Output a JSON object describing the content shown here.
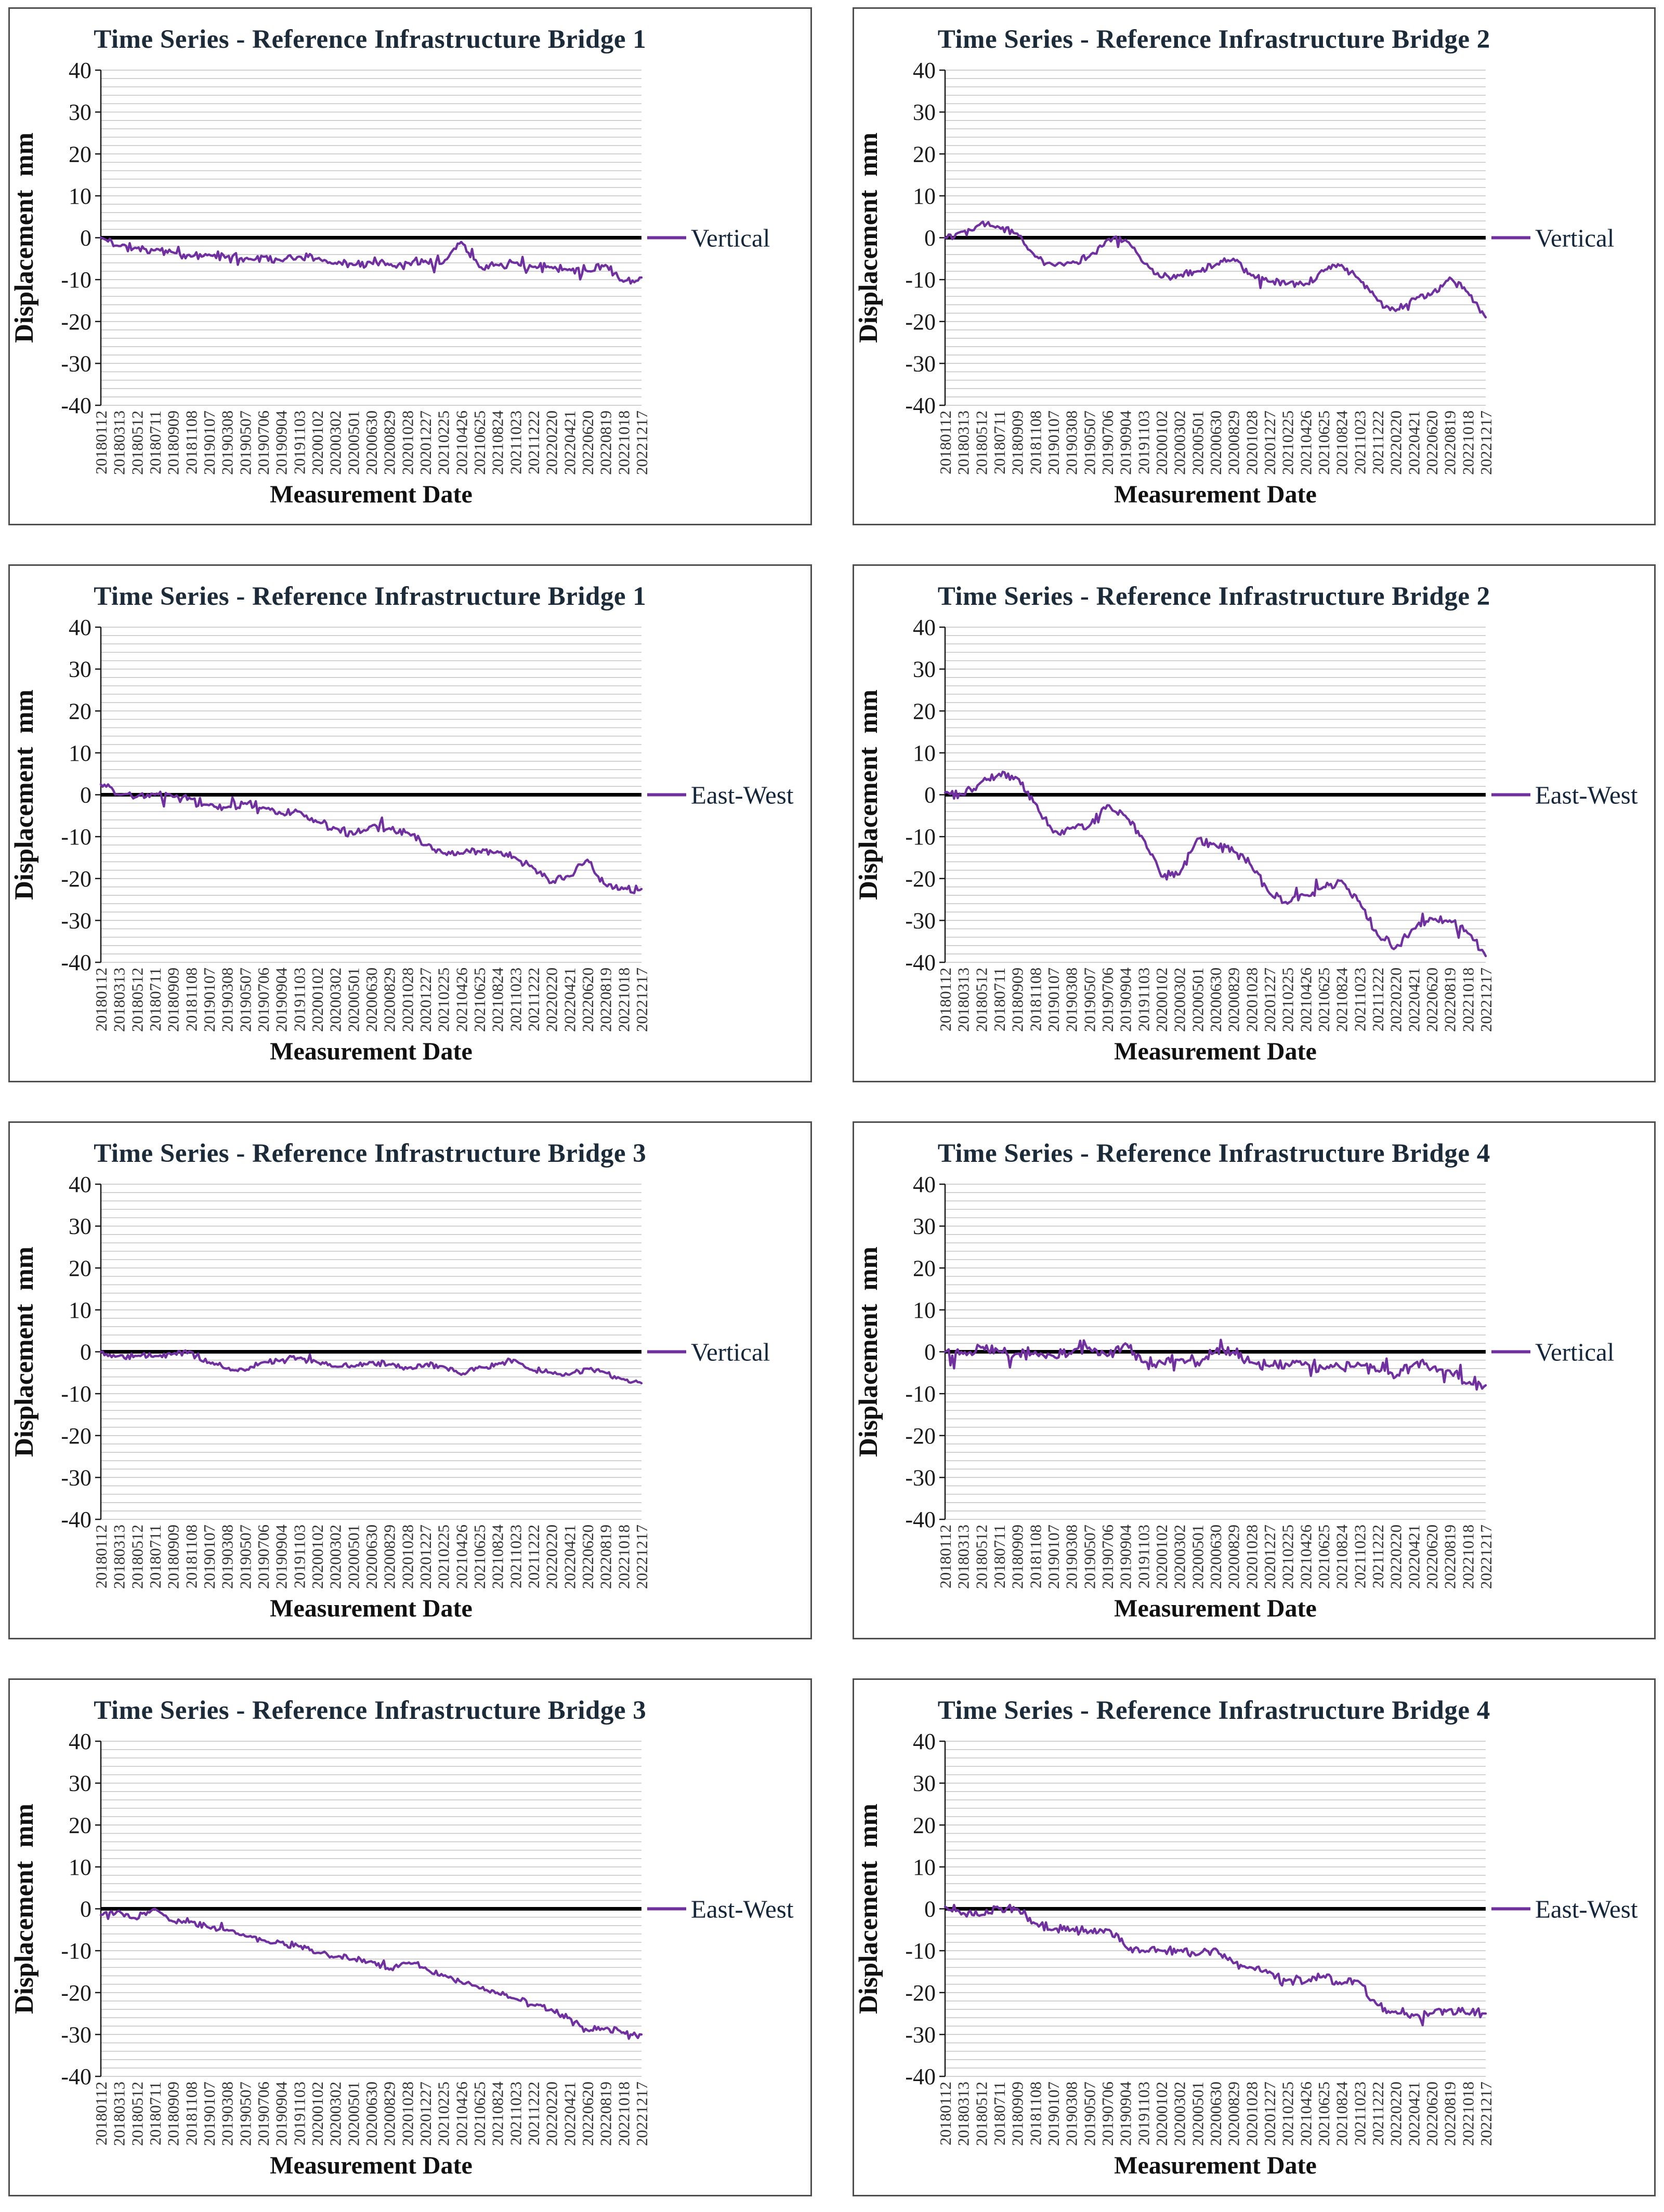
{
  "shared": {
    "ylabel": "Displacement  mm",
    "xlabel": "Measurement Date",
    "ylim": [
      -40,
      40
    ],
    "y_tick_step": 10,
    "grid_step": 2,
    "grid_on": true,
    "legend_position": "right-at-zero",
    "line_color": "#7030A0",
    "zero_line_color": "#000000",
    "gridline_color": "#c3c3c3",
    "axis_color": "#1a1a1a",
    "x_labels": [
      "20180112",
      "20180313",
      "20180512",
      "20180711",
      "20180909",
      "20181108",
      "20190107",
      "20190308",
      "20190507",
      "20190706",
      "20190904",
      "20191103",
      "20200102",
      "20200302",
      "20200501",
      "20200630",
      "20200829",
      "20201028",
      "20201227",
      "20210225",
      "20210426",
      "20210625",
      "20210824",
      "20211023",
      "20211222",
      "20220220",
      "20220421",
      "20220620",
      "20220819",
      "20221018",
      "20221217"
    ]
  },
  "chart_data": [
    {
      "type": "line",
      "title": "Time Series - Reference Infrastructure Bridge 1",
      "legend": "Vertical",
      "noise_amplitude": 1.1,
      "seed": 11,
      "series": [
        {
          "name": "Vertical",
          "values": [
            0,
            -2,
            -2.5,
            -3,
            -3.5,
            -4.5,
            -4,
            -4.5,
            -5,
            -4.5,
            -5.5,
            -4.5,
            -5,
            -6,
            -6.5,
            -6,
            -6.5,
            -6,
            -5.5,
            -6,
            -1,
            -7,
            -6.5,
            -6,
            -7,
            -7,
            -7.5,
            -8,
            -6.5,
            -10.5,
            -9.5
          ]
        }
      ]
    },
    {
      "type": "line",
      "title": "Time Series - Reference Infrastructure Bridge 2",
      "legend": "Vertical",
      "noise_amplitude": 1.0,
      "seed": 22,
      "series": [
        {
          "name": "Vertical",
          "values": [
            0,
            1.5,
            3.5,
            2.5,
            1,
            -4.5,
            -6.5,
            -6,
            -4.5,
            -0.5,
            -0.5,
            -6,
            -9.5,
            -9,
            -8,
            -6.5,
            -5,
            -9,
            -10.5,
            -11,
            -11,
            -8,
            -6.5,
            -10,
            -15,
            -17.5,
            -14.5,
            -13.5,
            -9.5,
            -13,
            -19
          ]
        }
      ]
    },
    {
      "type": "line",
      "title": "Time Series - Reference Infrastructure Bridge 1",
      "legend": "East-West",
      "noise_amplitude": 1.1,
      "seed": 33,
      "series": [
        {
          "name": "East-West",
          "values": [
            2.5,
            0,
            -0.5,
            0,
            -0.5,
            -1,
            -2.5,
            -3,
            -2,
            -3,
            -4.5,
            -4,
            -6.5,
            -8,
            -9.5,
            -7.5,
            -8,
            -9,
            -12,
            -14,
            -14,
            -13.5,
            -13.5,
            -15,
            -17.5,
            -21,
            -19.5,
            -15.5,
            -21.5,
            -22.5,
            -22.5
          ]
        }
      ]
    },
    {
      "type": "line",
      "title": "Time Series - Reference Infrastructure Bridge 2",
      "legend": "East-West",
      "noise_amplitude": 1.2,
      "seed": 44,
      "series": [
        {
          "name": "East-West",
          "values": [
            0.5,
            0,
            3,
            5,
            4,
            -2,
            -9,
            -8,
            -7.5,
            -2.5,
            -5,
            -10.5,
            -19.5,
            -19,
            -10.5,
            -12,
            -13.5,
            -17,
            -23.5,
            -26,
            -24,
            -22,
            -20.5,
            -25.5,
            -33.5,
            -36.5,
            -32,
            -29.5,
            -30,
            -33,
            -38.5
          ]
        }
      ]
    },
    {
      "type": "line",
      "title": "Time Series - Reference Infrastructure Bridge 3",
      "legend": "Vertical",
      "noise_amplitude": 0.8,
      "seed": 55,
      "series": [
        {
          "name": "Vertical",
          "values": [
            0,
            -1,
            -1,
            -1,
            -0.5,
            0,
            -2.5,
            -4,
            -4.5,
            -2.5,
            -2,
            -1.5,
            -2.5,
            -3.5,
            -3.5,
            -2.5,
            -3,
            -4,
            -3,
            -3.5,
            -5.5,
            -3.5,
            -3,
            -2,
            -4.5,
            -5,
            -5.5,
            -4,
            -5,
            -6.5,
            -7.5
          ]
        }
      ]
    },
    {
      "type": "line",
      "title": "Time Series - Reference Infrastructure Bridge 4",
      "legend": "Vertical",
      "noise_amplitude": 1.6,
      "seed": 66,
      "series": [
        {
          "name": "Vertical",
          "values": [
            0,
            -0.5,
            1,
            0,
            -0.5,
            0,
            -1,
            -0.5,
            1,
            -1,
            2,
            -2.5,
            -2.5,
            -2,
            -2.5,
            0,
            0,
            -2.5,
            -3.5,
            -3,
            -2.5,
            -4,
            -4,
            -3,
            -4.5,
            -6,
            -3,
            -4,
            -4.5,
            -7.5,
            -8
          ]
        }
      ]
    },
    {
      "type": "line",
      "title": "Time Series - Reference Infrastructure Bridge 3",
      "legend": "East-West",
      "noise_amplitude": 0.9,
      "seed": 77,
      "series": [
        {
          "name": "East-West",
          "values": [
            -1.5,
            -0.5,
            -2.5,
            0,
            -3,
            -3,
            -4.5,
            -5,
            -6.5,
            -7.5,
            -8,
            -9,
            -10.5,
            -11.5,
            -12,
            -12.5,
            -14.5,
            -13,
            -14,
            -16,
            -17.5,
            -19,
            -20,
            -21.5,
            -23,
            -24,
            -26,
            -29,
            -28.5,
            -29.5,
            -30
          ]
        }
      ]
    },
    {
      "type": "line",
      "title": "Time Series - Reference Infrastructure Bridge 4",
      "legend": "East-West",
      "noise_amplitude": 1.3,
      "seed": 88,
      "series": [
        {
          "name": "East-West",
          "values": [
            0.5,
            -1,
            -1.5,
            0,
            0,
            -3.5,
            -5,
            -5,
            -5.5,
            -5,
            -9,
            -10,
            -10,
            -10,
            -11,
            -9.5,
            -13,
            -14,
            -15,
            -17,
            -17.5,
            -16,
            -18,
            -17.5,
            -23,
            -24.5,
            -25.5,
            -25,
            -24,
            -25,
            -25
          ]
        }
      ]
    }
  ]
}
